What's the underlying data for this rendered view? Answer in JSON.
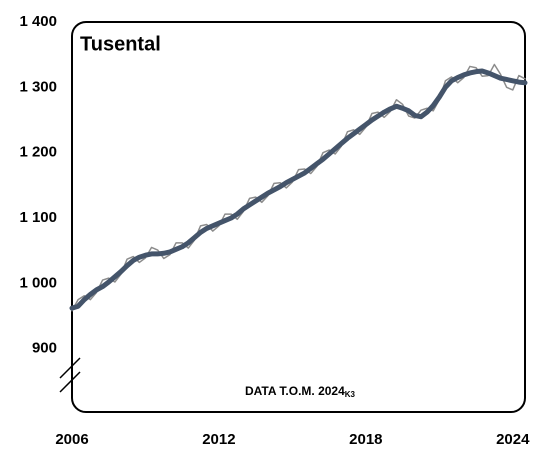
{
  "chart_data": {
    "type": "line",
    "title": "Tusental",
    "note": "DATA T.O.M. 2024",
    "note_sub": "K3",
    "x": [
      2006,
      2006.25,
      2006.5,
      2006.75,
      2007,
      2007.25,
      2007.5,
      2007.75,
      2008,
      2008.25,
      2008.5,
      2008.75,
      2009,
      2009.25,
      2009.5,
      2009.75,
      2010,
      2010.25,
      2010.5,
      2010.75,
      2011,
      2011.25,
      2011.5,
      2011.75,
      2012,
      2012.25,
      2012.5,
      2012.75,
      2013,
      2013.25,
      2013.5,
      2013.75,
      2014,
      2014.25,
      2014.5,
      2014.75,
      2015,
      2015.25,
      2015.5,
      2015.75,
      2016,
      2016.25,
      2016.5,
      2016.75,
      2017,
      2017.25,
      2017.5,
      2017.75,
      2018,
      2018.25,
      2018.5,
      2018.75,
      2019,
      2019.25,
      2019.5,
      2019.75,
      2020,
      2020.25,
      2020.5,
      2020.75,
      2021,
      2021.25,
      2021.5,
      2021.75,
      2022,
      2022.25,
      2022.5,
      2022.75,
      2023,
      2023.25,
      2023.5,
      2023.75,
      2024,
      2024.25,
      2024.5
    ],
    "series": [
      {
        "color": "#8c8c8c",
        "width": 1.5,
        "values": [
          958,
          975,
          981,
          975,
          986,
          1005,
          1008,
          1002,
          1014,
          1037,
          1041,
          1032,
          1039,
          1055,
          1051,
          1038,
          1044,
          1062,
          1062,
          1054,
          1066,
          1088,
          1090,
          1080,
          1088,
          1106,
          1106,
          1098,
          1110,
          1130,
          1132,
          1124,
          1134,
          1153,
          1154,
          1146,
          1155,
          1174,
          1175,
          1168,
          1179,
          1200,
          1204,
          1198,
          1210,
          1232,
          1235,
          1228,
          1239,
          1260,
          1262,
          1254,
          1263,
          1281,
          1274,
          1256,
          1253,
          1265,
          1268,
          1264,
          1281,
          1310,
          1316,
          1307,
          1315,
          1332,
          1330,
          1317,
          1318,
          1335,
          1320,
          1300,
          1296,
          1318,
          1313
        ]
      },
      {
        "color": "#44546a",
        "width": 5,
        "values": [
          962,
          965,
          975,
          983,
          990,
          995,
          1002,
          1010,
          1018,
          1027,
          1035,
          1040,
          1043,
          1045,
          1045,
          1046,
          1048,
          1052,
          1056,
          1062,
          1070,
          1078,
          1084,
          1088,
          1092,
          1096,
          1100,
          1106,
          1114,
          1120,
          1126,
          1132,
          1138,
          1143,
          1148,
          1154,
          1159,
          1164,
          1169,
          1176,
          1183,
          1190,
          1198,
          1206,
          1214,
          1222,
          1229,
          1236,
          1243,
          1250,
          1256,
          1262,
          1267,
          1271,
          1268,
          1264,
          1257,
          1255,
          1262,
          1272,
          1285,
          1300,
          1310,
          1315,
          1319,
          1322,
          1324,
          1325,
          1322,
          1318,
          1314,
          1312,
          1310,
          1308,
          1307
        ]
      }
    ],
    "xlim": [
      2006,
      2024.5
    ],
    "xticks": [
      2006,
      2012,
      2018,
      2024
    ],
    "ylim": [
      800,
      1400
    ],
    "yticks": [
      900,
      {
        "value": 1000,
        "label": "1 000"
      },
      {
        "value": 1100,
        "label": "1 100"
      },
      {
        "value": 1200,
        "label": "1 200"
      },
      {
        "value": 1300,
        "label": "1 300"
      },
      {
        "value": 1400,
        "label": "1 400"
      }
    ],
    "grid": false
  }
}
